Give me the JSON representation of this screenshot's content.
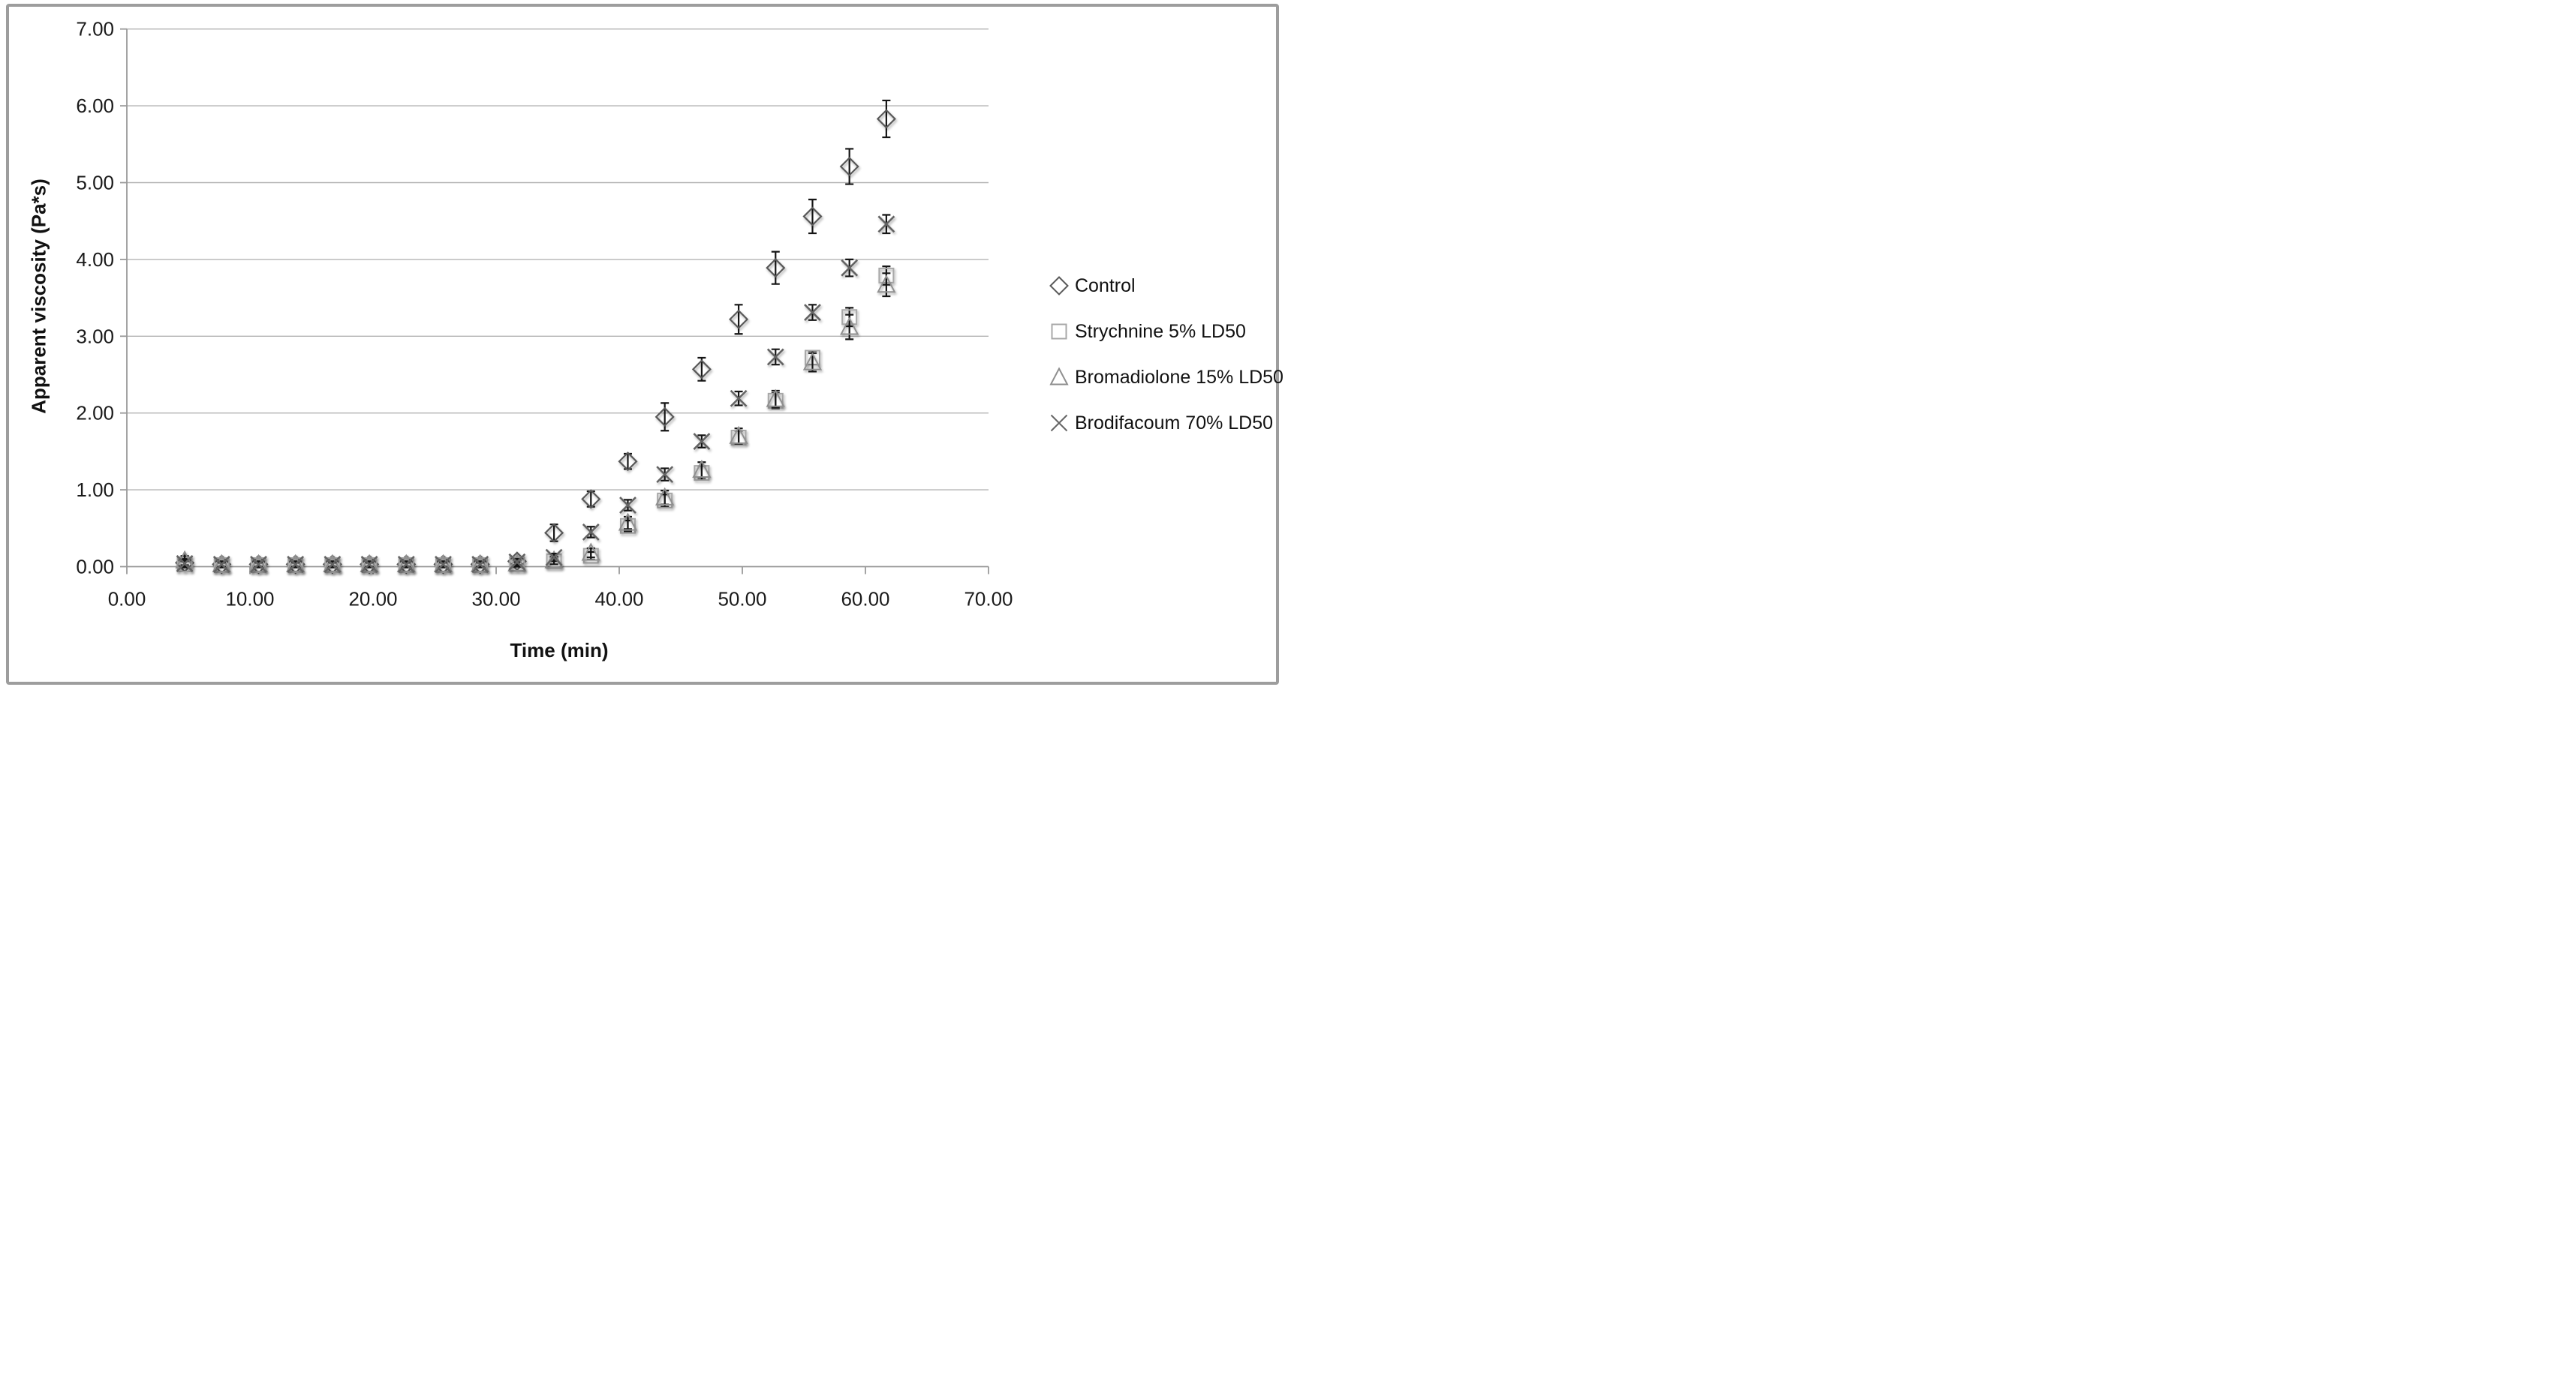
{
  "frame": {
    "border_color": "#9d9d9d",
    "background": "#ffffff"
  },
  "chart_data": {
    "type": "scatter",
    "title": "",
    "xlabel": "Time (min)",
    "ylabel": "Apparent viscosity (Pa*s)",
    "xlim": [
      0,
      70
    ],
    "ylim": [
      0,
      7
    ],
    "x_tick_values": [
      0,
      10,
      20,
      30,
      40,
      50,
      60,
      70
    ],
    "x_tick_labels": [
      "0.00",
      "10.00",
      "20.00",
      "30.00",
      "40.00",
      "50.00",
      "60.00",
      "70.00"
    ],
    "y_tick_values": [
      0,
      1,
      2,
      3,
      4,
      5,
      6,
      7
    ],
    "y_tick_labels": [
      "0.00",
      "1.00",
      "2.00",
      "3.00",
      "4.00",
      "5.00",
      "6.00",
      "7.00"
    ],
    "grid": "horizontal-major-only",
    "legend_position": "right-middle",
    "gridline_color": "#b3b3b3",
    "axis_line_color": "#9a9a9a",
    "tick_label_color": "#1a1a1a",
    "error_bar_color": "#151515",
    "x": [
      4.7,
      7.7,
      10.7,
      13.7,
      16.7,
      19.7,
      22.7,
      25.7,
      28.7,
      31.7,
      34.7,
      37.7,
      40.7,
      43.7,
      46.7,
      49.7,
      52.7,
      55.7,
      58.7,
      61.7
    ],
    "series": [
      {
        "name": "Control",
        "marker": "diamond",
        "marker_color": "#595959",
        "values": [
          0.05,
          0.03,
          0.03,
          0.03,
          0.03,
          0.03,
          0.03,
          0.03,
          0.03,
          0.07,
          0.44,
          0.88,
          1.37,
          1.95,
          2.57,
          3.22,
          3.89,
          4.56,
          5.21,
          5.83
        ],
        "errors": [
          0.05,
          0.03,
          0.03,
          0.03,
          0.03,
          0.03,
          0.03,
          0.03,
          0.03,
          0.05,
          0.11,
          0.1,
          0.1,
          0.18,
          0.15,
          0.19,
          0.21,
          0.22,
          0.23,
          0.24
        ]
      },
      {
        "name": "Strychnine 5% LD50",
        "marker": "square",
        "marker_color": "#a8a8a8",
        "values": [
          0.03,
          0.02,
          0.02,
          0.02,
          0.02,
          0.02,
          0.02,
          0.02,
          0.02,
          0.03,
          0.07,
          0.14,
          0.53,
          0.86,
          1.22,
          1.68,
          2.16,
          2.72,
          3.25,
          3.79
        ],
        "errors": [
          0.04,
          0.03,
          0.03,
          0.03,
          0.03,
          0.03,
          0.03,
          0.03,
          0.03,
          0.03,
          0.04,
          0.05,
          0.07,
          0.08,
          0.09,
          0.09,
          0.1,
          0.09,
          0.12,
          0.12
        ]
      },
      {
        "name": "Bromadiolone 15% LD50",
        "marker": "triangle",
        "marker_color": "#8f8f8f",
        "values": [
          0.08,
          0.03,
          0.03,
          0.03,
          0.03,
          0.03,
          0.03,
          0.03,
          0.03,
          0.04,
          0.08,
          0.18,
          0.57,
          0.9,
          1.26,
          1.7,
          2.18,
          2.66,
          3.12,
          3.67
        ],
        "errors": [
          0.06,
          0.04,
          0.04,
          0.04,
          0.04,
          0.04,
          0.04,
          0.04,
          0.04,
          0.04,
          0.05,
          0.06,
          0.08,
          0.09,
          0.1,
          0.1,
          0.11,
          0.12,
          0.16,
          0.15
        ]
      },
      {
        "name": "Brodifacoum 70% LD50",
        "marker": "x",
        "marker_color": "#646464",
        "values": [
          0.04,
          0.03,
          0.03,
          0.03,
          0.03,
          0.03,
          0.03,
          0.03,
          0.03,
          0.06,
          0.12,
          0.45,
          0.8,
          1.2,
          1.63,
          2.19,
          2.73,
          3.31,
          3.89,
          4.46
        ],
        "errors": [
          0.05,
          0.03,
          0.03,
          0.03,
          0.03,
          0.03,
          0.03,
          0.03,
          0.03,
          0.04,
          0.05,
          0.07,
          0.07,
          0.08,
          0.08,
          0.09,
          0.1,
          0.1,
          0.11,
          0.12
        ]
      }
    ]
  }
}
